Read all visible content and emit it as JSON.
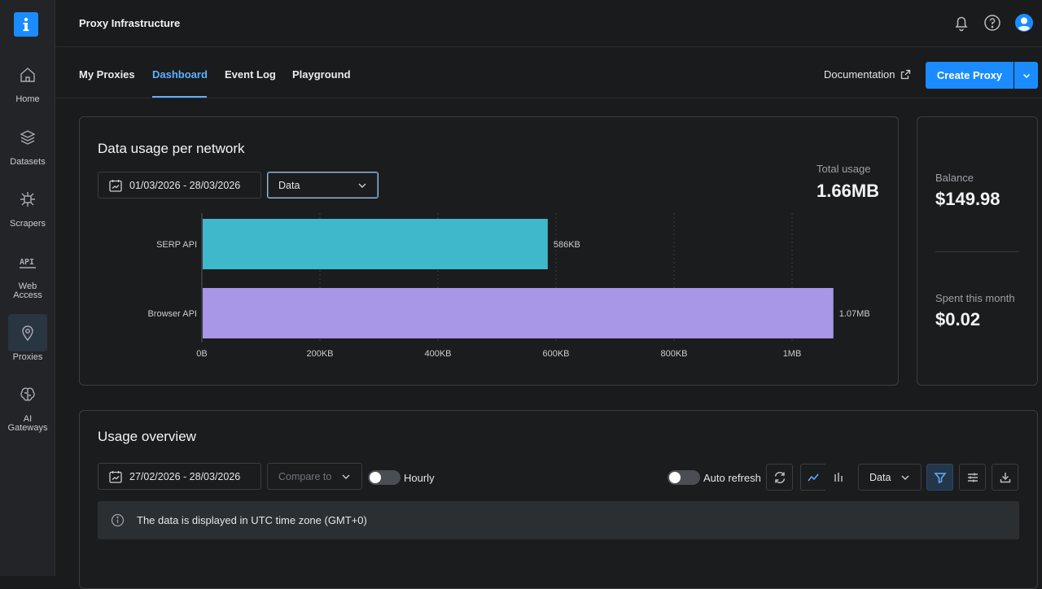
{
  "app": {
    "title": "Proxy Infrastructure"
  },
  "sidebar": {
    "items": [
      {
        "label": "Home",
        "icon": "home-icon"
      },
      {
        "label": "Datasets",
        "icon": "layers-icon"
      },
      {
        "label": "Scrapers",
        "icon": "scraper-icon"
      },
      {
        "label": "Web\nAccess",
        "icon": "api-icon"
      },
      {
        "label": "Proxies",
        "icon": "location-pin-icon",
        "active": true
      },
      {
        "label": "AI\nGateways",
        "icon": "brain-icon"
      }
    ]
  },
  "tabs": [
    {
      "label": "My Proxies"
    },
    {
      "label": "Dashboard",
      "active": true
    },
    {
      "label": "Event Log"
    },
    {
      "label": "Playground"
    }
  ],
  "header": {
    "docs_label": "Documentation",
    "create_label": "Create Proxy"
  },
  "usage_panel": {
    "title": "Data usage per network",
    "date_range": "01/03/2026 - 28/03/2026",
    "metric_select": "Data",
    "total_label": "Total usage",
    "total_value": "1.66MB"
  },
  "balance_panel": {
    "balance_label": "Balance",
    "balance_value": "$149.98",
    "spent_label": "Spent this month",
    "spent_value": "$0.02"
  },
  "overview_panel": {
    "title": "Usage overview",
    "date_range": "27/02/2026 - 28/03/2026",
    "compare_placeholder": "Compare to",
    "hourly_label": "Hourly",
    "auto_refresh_label": "Auto refresh",
    "metric_select": "Data",
    "info_text": "The data is displayed in UTC time zone (GMT+0)"
  },
  "chart_data": {
    "type": "bar",
    "orientation": "horizontal",
    "categories": [
      "SERP API",
      "Browser API"
    ],
    "values_kb": [
      586,
      1070
    ],
    "value_labels": [
      "586KB",
      "1.07MB"
    ],
    "x_ticks": [
      "0B",
      "200KB",
      "400KB",
      "600KB",
      "800KB",
      "1MB"
    ],
    "x_tick_values_kb": [
      0,
      200,
      400,
      600,
      800,
      1000
    ],
    "xlim_kb": [
      0,
      1070
    ],
    "colors": [
      "#3fb8cc",
      "#a896e6"
    ],
    "grid": true
  }
}
